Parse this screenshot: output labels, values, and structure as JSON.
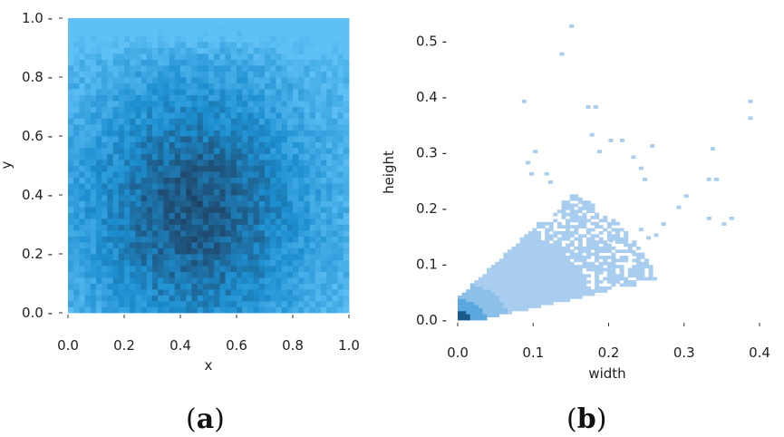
{
  "chart_data": [
    {
      "type": "heatmap",
      "panel_label": {
        "open": "(",
        "letter": "a",
        "close": ")"
      },
      "xlabel": "x",
      "ylabel": "y",
      "xlim": [
        0.0,
        1.0
      ],
      "ylim": [
        0.0,
        1.0
      ],
      "x_ticks": [
        "0.0",
        "0.2",
        "0.4",
        "0.6",
        "0.8",
        "1.0"
      ],
      "y_ticks": [
        "0.0",
        "0.2",
        "0.4",
        "0.6",
        "0.8",
        "1.0"
      ],
      "bins": [
        50,
        50
      ],
      "density_description": "2D histogram; density peaks near x≈0.45, y≈0.35 and fades toward the top edge",
      "peak": {
        "x": 0.45,
        "y": 0.35
      },
      "colors": {
        "high": "#1f3f5f",
        "mid": "#1d8fd0",
        "low": "#5ec0f5"
      },
      "grid": false
    },
    {
      "type": "heatmap",
      "panel_label": {
        "open": "(",
        "letter": "b",
        "close": ")"
      },
      "xlabel": "width",
      "ylabel": "height",
      "xlim": [
        0.0,
        0.4
      ],
      "ylim": [
        0.0,
        0.55
      ],
      "x_ticks": [
        "0.0",
        "0.1",
        "0.2",
        "0.3",
        "0.4"
      ],
      "y_ticks": [
        "0.0",
        "0.1",
        "0.2",
        "0.3",
        "0.4",
        "0.5"
      ],
      "density_description": "2D histogram of width vs height; dense cluster near origin, spreading along height≈0.9*width",
      "peak": {
        "x": 0.01,
        "y": 0.01
      },
      "outlier_cells": [
        [
          0.148,
          0.525
        ],
        [
          0.135,
          0.475
        ],
        [
          0.385,
          0.39
        ],
        [
          0.385,
          0.36
        ],
        [
          0.085,
          0.39
        ],
        [
          0.17,
          0.38
        ],
        [
          0.18,
          0.38
        ],
        [
          0.255,
          0.31
        ],
        [
          0.335,
          0.305
        ],
        [
          0.33,
          0.25
        ],
        [
          0.34,
          0.25
        ],
        [
          0.36,
          0.18
        ],
        [
          0.35,
          0.17
        ],
        [
          0.33,
          0.18
        ],
        [
          0.3,
          0.22
        ],
        [
          0.29,
          0.2
        ],
        [
          0.27,
          0.17
        ],
        [
          0.26,
          0.15
        ],
        [
          0.24,
          0.16
        ],
        [
          0.25,
          0.145
        ],
        [
          0.23,
          0.12
        ],
        [
          0.22,
          0.11
        ],
        [
          0.2,
          0.14
        ],
        [
          0.2,
          0.32
        ],
        [
          0.215,
          0.32
        ],
        [
          0.23,
          0.29
        ],
        [
          0.24,
          0.27
        ],
        [
          0.245,
          0.25
        ],
        [
          0.095,
          0.26
        ],
        [
          0.09,
          0.28
        ],
        [
          0.12,
          0.245
        ],
        [
          0.115,
          0.26
        ],
        [
          0.1,
          0.3
        ],
        [
          0.185,
          0.3
        ],
        [
          0.175,
          0.33
        ]
      ],
      "colors": {
        "high": "#1a5a8a",
        "mid": "#5aa8de",
        "low": "#a8cdee"
      },
      "grid": false
    }
  ]
}
